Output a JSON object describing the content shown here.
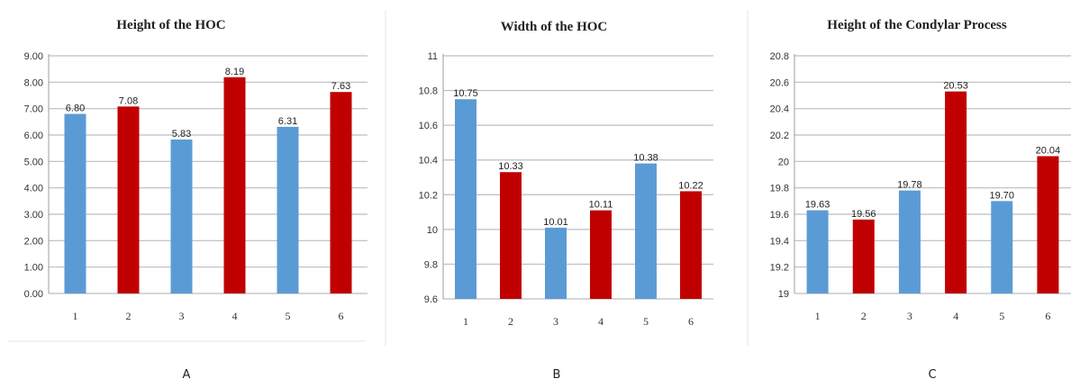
{
  "chart_data": [
    {
      "type": "bar",
      "title": "Height of the HOC",
      "panel_label": "A",
      "categories": [
        "1",
        "2",
        "3",
        "4",
        "5",
        "6"
      ],
      "values": [
        6.8,
        7.08,
        5.83,
        8.19,
        6.31,
        7.63
      ],
      "data_labels": [
        "6.80",
        "7.08",
        "5.83",
        "8.19",
        "6.31",
        "7.63"
      ],
      "yticks": [
        "0.00",
        "1.00",
        "2.00",
        "3.00",
        "4.00",
        "5.00",
        "6.00",
        "7.00",
        "8.00",
        "9.00"
      ],
      "ylim": [
        0,
        9
      ],
      "xlabel": "",
      "ylabel": "",
      "grid": true,
      "bar_colors": [
        "#5b9bd5",
        "#c00000",
        "#5b9bd5",
        "#c00000",
        "#5b9bd5",
        "#c00000"
      ]
    },
    {
      "type": "bar",
      "title": "Width of the HOC",
      "panel_label": "B",
      "categories": [
        "1",
        "2",
        "3",
        "4",
        "5",
        "6"
      ],
      "values": [
        10.75,
        10.33,
        10.01,
        10.11,
        10.38,
        10.22
      ],
      "data_labels": [
        "10.75",
        "10.33",
        "10.01",
        "10.11",
        "10.38",
        "10.22"
      ],
      "yticks": [
        "9.6",
        "9.8",
        "10",
        "10.2",
        "10.4",
        "10.6",
        "10.8",
        "11"
      ],
      "ylim": [
        9.6,
        11
      ],
      "xlabel": "",
      "ylabel": "",
      "grid": true,
      "bar_colors": [
        "#5b9bd5",
        "#c00000",
        "#5b9bd5",
        "#c00000",
        "#5b9bd5",
        "#c00000"
      ]
    },
    {
      "type": "bar",
      "title": "Height of the Condylar Process",
      "panel_label": "C",
      "categories": [
        "1",
        "2",
        "3",
        "4",
        "5",
        "6"
      ],
      "values": [
        19.63,
        19.56,
        19.78,
        20.53,
        19.7,
        20.04
      ],
      "data_labels": [
        "19.63",
        "19.56",
        "19.78",
        "20.53",
        "19.70",
        "20.04"
      ],
      "yticks": [
        "19",
        "19.2",
        "19.4",
        "19.6",
        "19.8",
        "20",
        "20.2",
        "20.4",
        "20.6",
        "20.8"
      ],
      "ylim": [
        19,
        20.8
      ],
      "xlabel": "",
      "ylabel": "",
      "grid": true,
      "bar_colors": [
        "#5b9bd5",
        "#c00000",
        "#5b9bd5",
        "#c00000",
        "#5b9bd5",
        "#c00000"
      ]
    }
  ]
}
